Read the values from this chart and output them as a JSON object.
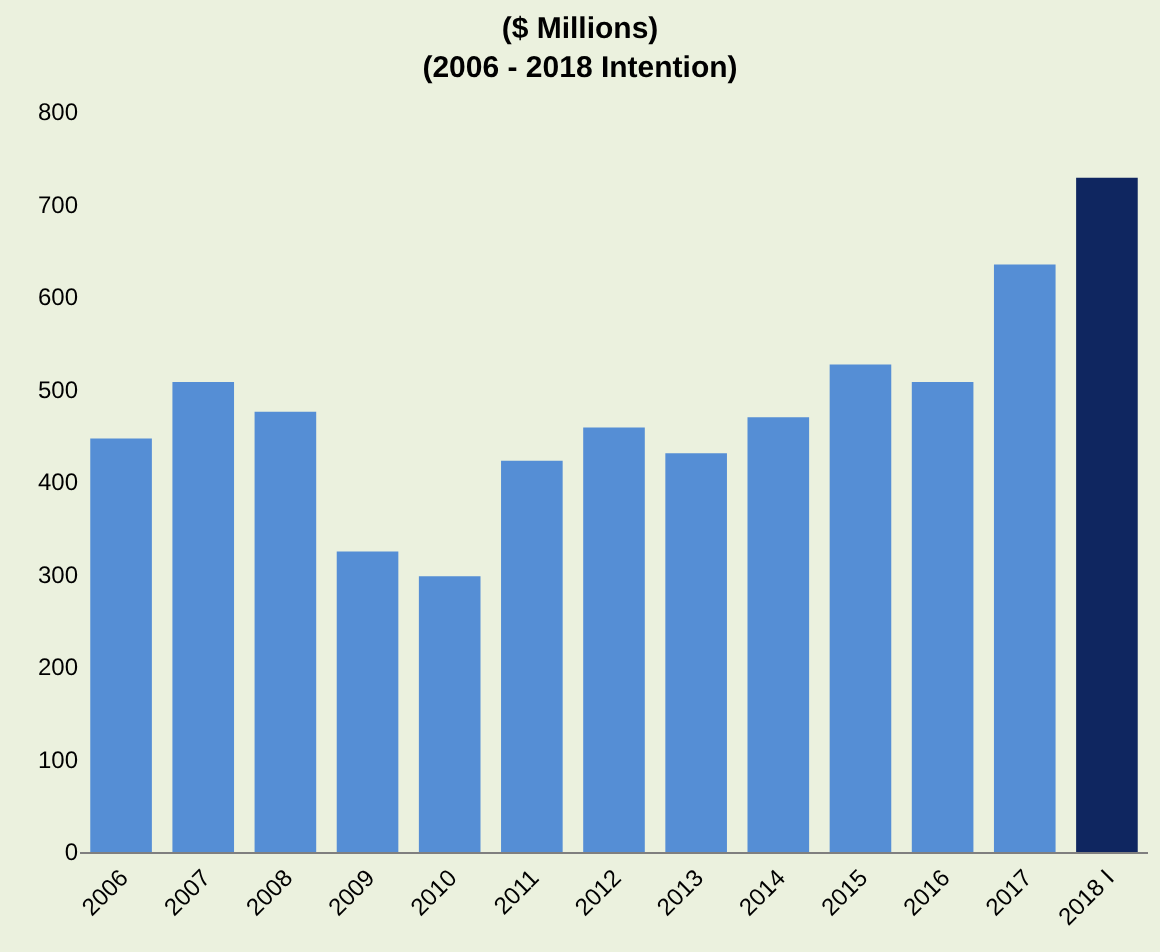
{
  "chart_data": {
    "type": "bar",
    "title": "($ Millions)",
    "subtitle": "(2006 - 2018 Intention)",
    "categories": [
      "2006",
      "2007",
      "2008",
      "2009",
      "2010",
      "2011",
      "2012",
      "2013",
      "2014",
      "2015",
      "2016",
      "2017",
      "2018 I"
    ],
    "values": [
      447,
      508,
      476,
      325,
      298,
      423,
      459,
      431,
      470,
      527,
      508,
      635,
      729
    ],
    "colors": [
      "#558ed5",
      "#558ed5",
      "#558ed5",
      "#558ed5",
      "#558ed5",
      "#558ed5",
      "#558ed5",
      "#558ed5",
      "#558ed5",
      "#558ed5",
      "#558ed5",
      "#558ed5",
      "#0f2660"
    ],
    "ylim": [
      0,
      800
    ],
    "yticks": [
      0,
      100,
      200,
      300,
      400,
      500,
      600,
      700,
      800
    ],
    "grid": false
  }
}
